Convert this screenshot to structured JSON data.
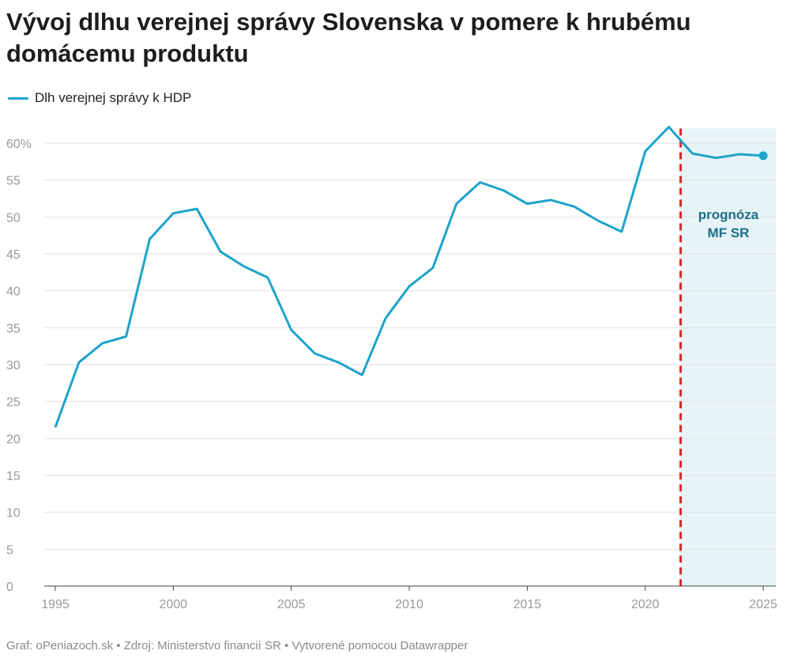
{
  "title": "Vývoj dlhu verejnej správy Slovenska v pomere k hrubému domácemu produktu",
  "footer": "Graf: oPeniazoch.sk • Zdroj: Ministerstvo financií SR • Vytvorené pomocou Datawrapper",
  "chart_data": {
    "type": "line",
    "title": "Vývoj dlhu verejnej správy Slovenska v pomere k hrubému domácemu produktu",
    "xlabel": "",
    "ylabel": "",
    "x": [
      1995,
      1996,
      1997,
      1998,
      1999,
      2000,
      2001,
      2002,
      2003,
      2004,
      2005,
      2006,
      2007,
      2008,
      2009,
      2010,
      2011,
      2012,
      2013,
      2014,
      2015,
      2016,
      2017,
      2018,
      2019,
      2020,
      2021,
      2022,
      2023,
      2024,
      2025
    ],
    "series": [
      {
        "name": "Dlh verejnej správy k HDP",
        "color": "#1ea3cb",
        "values": [
          21.5,
          30.3,
          32.9,
          33.8,
          47.0,
          50.5,
          51.1,
          45.3,
          43.3,
          41.8,
          34.7,
          31.5,
          30.3,
          28.6,
          36.3,
          40.6,
          43.1,
          51.8,
          54.7,
          53.6,
          51.8,
          52.3,
          51.4,
          49.5,
          48.0,
          58.9,
          62.2,
          58.6,
          58.0,
          58.5,
          58.3
        ]
      }
    ],
    "xlim": [
      1995,
      2025
    ],
    "ylim": [
      0,
      62
    ],
    "x_ticks": [
      "1995",
      "2000",
      "2005",
      "2010",
      "2015",
      "2020",
      "2025"
    ],
    "y_ticks": [
      "0",
      "5",
      "10",
      "15",
      "20",
      "25",
      "30",
      "35",
      "40",
      "45",
      "50",
      "55",
      "60%"
    ],
    "y_tick_values": [
      0,
      5,
      10,
      15,
      20,
      25,
      30,
      35,
      40,
      45,
      50,
      55,
      60
    ],
    "grid": "horizontal",
    "legend_position": "top-left",
    "forecast": {
      "start": 2021.5,
      "end": 2025,
      "label_line1": "prognóza",
      "label_line2": "MF SR",
      "shade_color": "#e6f3f7",
      "divider_color": "#d42a2a"
    }
  }
}
